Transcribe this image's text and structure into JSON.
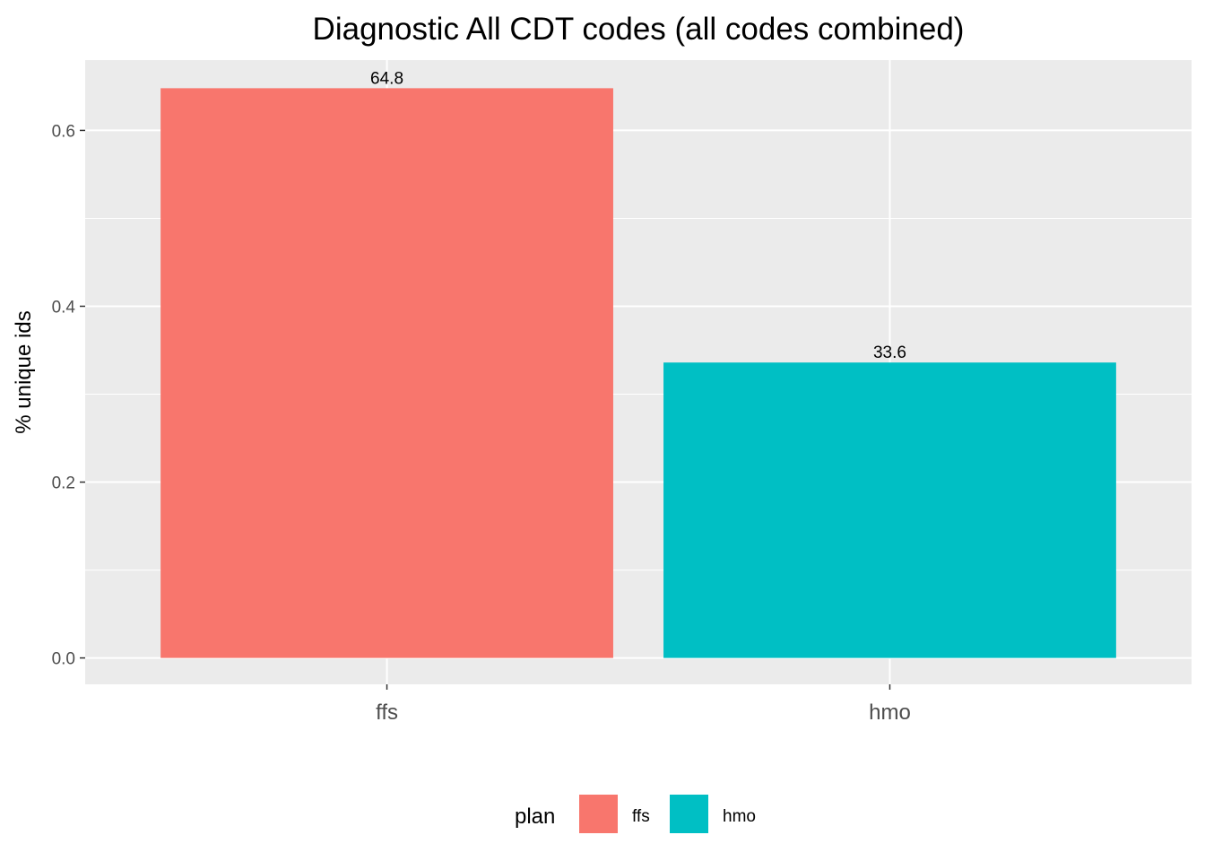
{
  "chart_data": {
    "type": "bar",
    "title": "Diagnostic All CDT codes (all codes combined)",
    "xlabel": "",
    "ylabel": "% unique ids",
    "categories": [
      "ffs",
      "hmo"
    ],
    "values": [
      0.648,
      0.336
    ],
    "data_labels": [
      "64.8",
      "33.6"
    ],
    "colors": [
      "#F8766D",
      "#00BFC4"
    ],
    "ylim": [
      -0.03,
      0.68
    ],
    "yticks": [
      0.0,
      0.2,
      0.4,
      0.6
    ],
    "ytick_labels": [
      "0.0",
      "0.2",
      "0.4",
      "0.6"
    ],
    "grid": true,
    "legend": {
      "position": "bottom",
      "title": "plan",
      "entries": [
        "ffs",
        "hmo"
      ]
    }
  }
}
